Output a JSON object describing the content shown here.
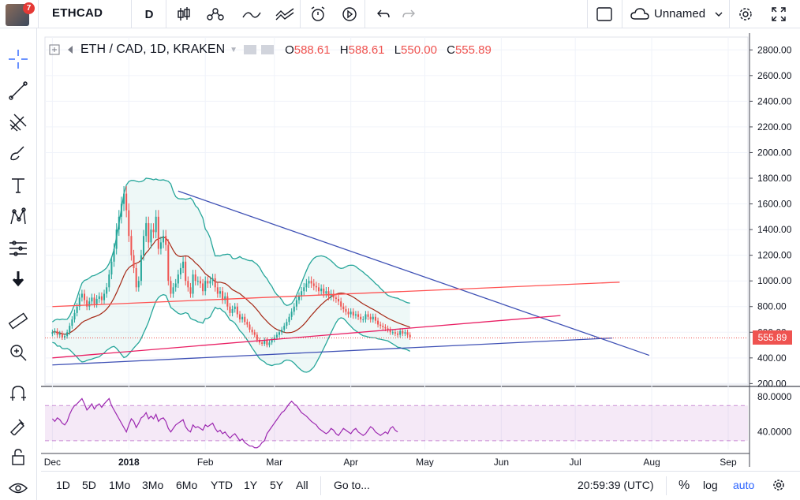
{
  "header": {
    "symbol": "ETHCAD",
    "interval": "D",
    "notifications": "7",
    "layout_name": "Unnamed"
  },
  "legend": {
    "title": "ETH / CAD, 1D, KRAKEN",
    "o_label": "O",
    "o_value": "588.61",
    "h_label": "H",
    "h_value": "588.61",
    "l_label": "L",
    "l_value": "550.00",
    "c_label": "C",
    "c_value": "555.89"
  },
  "bottom": {
    "ranges": [
      "1D",
      "5D",
      "1Mo",
      "3Mo",
      "6Mo",
      "YTD",
      "1Y",
      "5Y",
      "All"
    ],
    "goto": "Go to...",
    "clock": "20:59:39 (UTC)",
    "percent": "%",
    "log": "log",
    "auto": "auto"
  },
  "chart_data": {
    "type": "candlestick",
    "price_axis": {
      "ticks": [
        "2800.00",
        "2600.00",
        "2400.00",
        "2200.00",
        "2000.00",
        "1800.00",
        "1600.00",
        "1400.00",
        "1200.00",
        "1000.00",
        "800.00",
        "600.00",
        "400.00",
        "200.00"
      ],
      "tick_values": [
        2800,
        2600,
        2400,
        2200,
        2000,
        1800,
        1600,
        1400,
        1200,
        1000,
        800,
        600,
        400,
        200
      ],
      "ylim": [
        190,
        2900
      ],
      "current_price": "555.89"
    },
    "time_axis": {
      "labels": [
        "Dec",
        "2018",
        "Feb",
        "Mar",
        "Apr",
        "May",
        "Jun",
        "Jul",
        "Aug",
        "Sep"
      ],
      "label_days": [
        0,
        31,
        62,
        90,
        121,
        151,
        182,
        212,
        243,
        274
      ],
      "xlim": [
        -3,
        282
      ]
    },
    "closes": [
      600,
      610,
      580,
      590,
      560,
      570,
      600,
      650,
      700,
      750,
      800,
      870,
      900,
      850,
      800,
      840,
      870,
      820,
      860,
      880,
      850,
      900,
      950,
      1050,
      1150,
      1250,
      1400,
      1500,
      1600,
      1680,
      1550,
      1350,
      1200,
      1100,
      950,
      1000,
      1200,
      1350,
      1450,
      1300,
      1400,
      1380,
      1500,
      1250,
      1300,
      1350,
      1280,
      1000,
      900,
      950,
      980,
      1050,
      1100,
      1150,
      1000,
      950,
      900,
      1050,
      1000,
      1000,
      980,
      920,
      1000,
      980,
      1000,
      1020,
      950,
      900,
      920,
      850,
      880,
      800,
      750,
      780,
      800,
      740,
      700,
      720,
      680,
      660,
      620,
      600,
      580,
      540,
      520,
      510,
      540,
      500,
      520,
      540,
      560,
      580,
      600,
      620,
      650,
      680,
      720,
      760,
      800,
      850,
      880,
      920,
      950,
      980,
      1000,
      980,
      960,
      950,
      920,
      940,
      900,
      920,
      880,
      900,
      870,
      860,
      840,
      800,
      780,
      760,
      740,
      760,
      730,
      740,
      720,
      700,
      700,
      740,
      720,
      700,
      720,
      690,
      660,
      650,
      640,
      630,
      620,
      600,
      600,
      590,
      580,
      610,
      590,
      600,
      580,
      560
    ],
    "rsi": {
      "ticks": [
        "80.0000",
        "40.0000"
      ],
      "tick_values": [
        80,
        40
      ],
      "ylim": [
        20,
        90
      ],
      "band": [
        70,
        30
      ],
      "values": [
        55,
        52,
        56,
        54,
        50,
        48,
        52,
        60,
        66,
        70,
        72,
        75,
        78,
        72,
        65,
        68,
        72,
        66,
        70,
        72,
        68,
        72,
        75,
        78,
        70,
        65,
        60,
        55,
        50,
        45,
        40,
        48,
        55,
        52,
        45,
        50,
        56,
        58,
        62,
        55,
        58,
        55,
        60,
        52,
        55,
        56,
        52,
        44,
        40,
        44,
        48,
        50,
        52,
        54,
        46,
        42,
        40,
        48,
        45,
        46,
        44,
        42,
        48,
        46,
        48,
        50,
        44,
        40,
        42,
        38,
        40,
        36,
        33,
        36,
        38,
        34,
        30,
        32,
        28,
        26,
        24,
        24,
        22,
        22,
        24,
        28,
        30,
        38,
        42,
        46,
        50,
        54,
        58,
        62,
        64,
        68,
        72,
        75,
        72,
        70,
        66,
        62,
        60,
        58,
        55,
        52,
        50,
        48,
        44,
        42,
        40,
        38,
        40,
        44,
        42,
        38,
        36,
        40,
        44,
        42,
        40,
        38,
        42,
        44,
        40,
        38,
        36,
        38,
        42,
        46,
        44,
        40,
        38,
        36,
        38,
        40,
        38,
        44,
        46,
        42,
        40
      ]
    },
    "series": [
      {
        "name": "ETH / CAD, 1D, KRAKEN",
        "style": "candles",
        "up_color": "#26a69a",
        "down_color": "#ef5350"
      },
      {
        "style": "bollinger",
        "color": "#26a69a"
      },
      {
        "style": "moving-average",
        "color": "#a52714"
      }
    ],
    "trendlines": [
      {
        "color": "#3f51b5",
        "points": [
          [
            51,
            1700
          ],
          [
            242,
            420
          ]
        ]
      },
      {
        "color": "#3f51b5",
        "points": [
          [
            0,
            345
          ],
          [
            227,
            555
          ]
        ]
      },
      {
        "color": "#e91e63",
        "points": [
          [
            0,
            400
          ],
          [
            206,
            730
          ]
        ]
      },
      {
        "color": "#ff5252",
        "points": [
          [
            0,
            800
          ],
          [
            230,
            990
          ]
        ]
      }
    ],
    "colors": {
      "accent": "#2962ff",
      "up": "#26a69a",
      "down": "#ef5350",
      "rsi": "#9c27b0"
    }
  }
}
